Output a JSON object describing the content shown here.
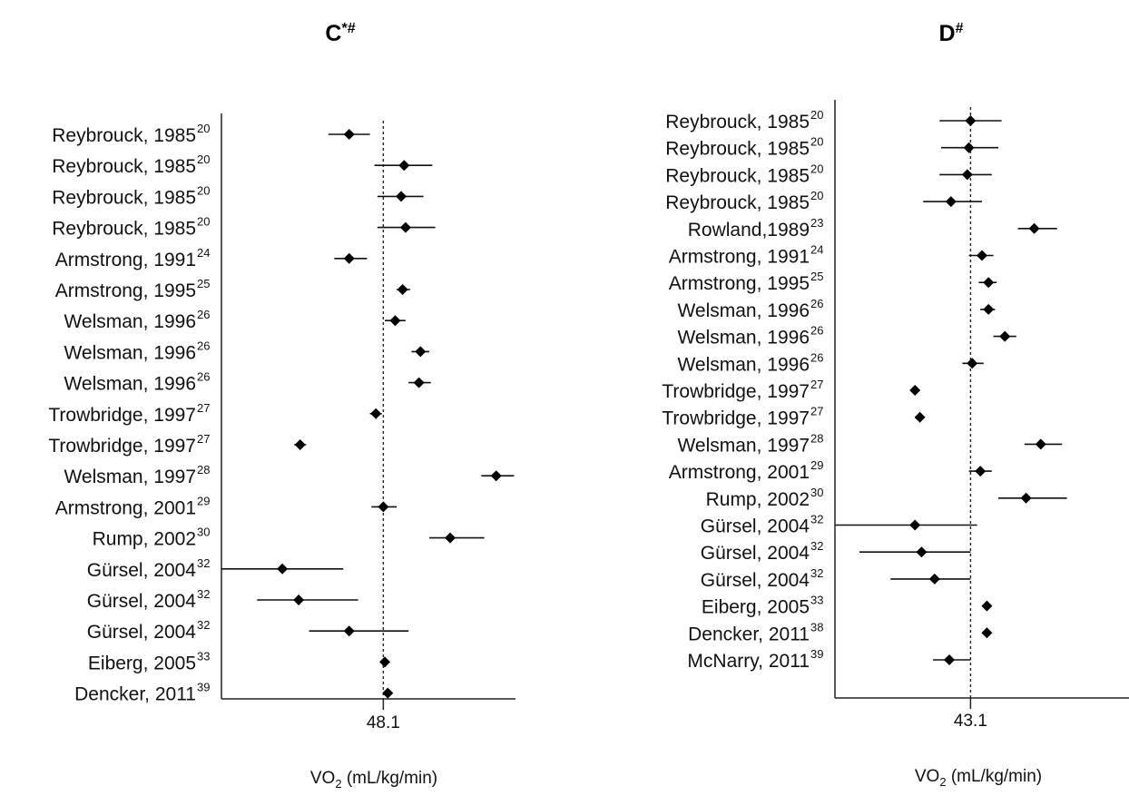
{
  "chart_data": [
    {
      "type": "forest",
      "panel_title": "C*#",
      "title_main": "C",
      "title_sup": "*#",
      "pooled_value": 48.1,
      "pooled_label": "48.1",
      "xlabel": "VO",
      "xlabel_sub": "2",
      "xlabel_rest": " (mL/kg/min)",
      "xlim": [
        37.2,
        57.0
      ],
      "studies": [
        {
          "label": "Reybrouck, 1985",
          "ref": "20",
          "value": 45.8,
          "ci": [
            44.4,
            47.2
          ]
        },
        {
          "label": "Reybrouck, 1985",
          "ref": "20",
          "value": 49.5,
          "ci": [
            47.5,
            51.4
          ]
        },
        {
          "label": "Reybrouck, 1985",
          "ref": "20",
          "value": 49.3,
          "ci": [
            47.7,
            50.8
          ]
        },
        {
          "label": "Reybrouck, 1985",
          "ref": "20",
          "value": 49.6,
          "ci": [
            47.7,
            51.6
          ]
        },
        {
          "label": "Armstrong, 1991",
          "ref": "24",
          "value": 45.8,
          "ci": [
            44.8,
            47.0
          ]
        },
        {
          "label": "Armstrong, 1995",
          "ref": "25",
          "value": 49.4,
          "ci": [
            49.0,
            49.9
          ]
        },
        {
          "label": "Welsman, 1996",
          "ref": "26",
          "value": 48.9,
          "ci": [
            48.2,
            49.6
          ]
        },
        {
          "label": "Welsman, 1996",
          "ref": "26",
          "value": 50.6,
          "ci": [
            50.0,
            51.2
          ]
        },
        {
          "label": "Welsman, 1996",
          "ref": "26",
          "value": 50.5,
          "ci": [
            49.8,
            51.3
          ]
        },
        {
          "label": "Trowbridge, 1997",
          "ref": "27",
          "value": 47.6,
          "ci": [
            47.2,
            48.0
          ]
        },
        {
          "label": "Trowbridge, 1997",
          "ref": "27",
          "value": 42.5,
          "ci": [
            42.1,
            42.9
          ]
        },
        {
          "label": "Welsman, 1997",
          "ref": "28",
          "value": 55.7,
          "ci": [
            54.7,
            56.9
          ]
        },
        {
          "label": "Armstrong, 2001",
          "ref": "29",
          "value": 48.1,
          "ci": [
            47.3,
            49.0
          ]
        },
        {
          "label": "Rump, 2002",
          "ref": "30",
          "value": 52.6,
          "ci": [
            51.2,
            54.9
          ]
        },
        {
          "label": "Gürsel, 2004",
          "ref": "32",
          "value": 41.3,
          "ci": [
            37.2,
            45.4
          ]
        },
        {
          "label": "Gürsel, 2004",
          "ref": "32",
          "value": 42.4,
          "ci": [
            39.6,
            46.4
          ]
        },
        {
          "label": "Gürsel, 2004",
          "ref": "32",
          "value": 45.8,
          "ci": [
            43.1,
            49.8
          ]
        },
        {
          "label": "Eiberg, 2005",
          "ref": "33",
          "value": 48.2,
          "ci": [
            48.0,
            48.4
          ]
        },
        {
          "label": "Dencker, 2011",
          "ref": "39",
          "value": 48.4,
          "ci": [
            48.2,
            48.6
          ]
        }
      ]
    },
    {
      "type": "forest",
      "panel_title": "D#",
      "title_main": "D",
      "title_sup": "#",
      "pooled_value": 43.1,
      "pooled_label": "43.1",
      "xlabel": "VO",
      "xlabel_sub": "2",
      "xlabel_rest": " (mL/kg/min)",
      "xlim": [
        34.8,
        52.8
      ],
      "studies": [
        {
          "label": "Reybrouck, 1985",
          "ref": "20",
          "value": 43.1,
          "ci": [
            41.2,
            45.0
          ]
        },
        {
          "label": "Reybrouck, 1985",
          "ref": "20",
          "value": 43.0,
          "ci": [
            41.3,
            44.8
          ]
        },
        {
          "label": "Reybrouck, 1985",
          "ref": "20",
          "value": 42.9,
          "ci": [
            41.2,
            44.4
          ]
        },
        {
          "label": "Reybrouck, 1985",
          "ref": "20",
          "value": 41.9,
          "ci": [
            40.2,
            43.8
          ]
        },
        {
          "label": "Rowland,1989",
          "ref": "23",
          "value": 47.0,
          "ci": [
            46.0,
            48.4
          ]
        },
        {
          "label": "Armstrong, 1991",
          "ref": "24",
          "value": 43.8,
          "ci": [
            43.0,
            44.5
          ]
        },
        {
          "label": "Armstrong, 1995",
          "ref": "25",
          "value": 44.2,
          "ci": [
            43.6,
            44.7
          ]
        },
        {
          "label": "Welsman, 1996",
          "ref": "26",
          "value": 44.2,
          "ci": [
            43.7,
            44.6
          ]
        },
        {
          "label": "Welsman, 1996",
          "ref": "26",
          "value": 45.2,
          "ci": [
            44.5,
            45.9
          ]
        },
        {
          "label": "Welsman, 1996",
          "ref": "26",
          "value": 43.2,
          "ci": [
            42.6,
            43.9
          ]
        },
        {
          "label": "Trowbridge, 1997",
          "ref": "27",
          "value": 39.7,
          "ci": [
            39.5,
            39.9
          ]
        },
        {
          "label": "Trowbridge, 1997",
          "ref": "27",
          "value": 40.0,
          "ci": [
            39.8,
            40.2
          ]
        },
        {
          "label": "Welsman, 1997",
          "ref": "28",
          "value": 47.4,
          "ci": [
            46.4,
            48.7
          ]
        },
        {
          "label": "Armstrong, 2001",
          "ref": "29",
          "value": 43.7,
          "ci": [
            43.0,
            44.4
          ]
        },
        {
          "label": "Rump, 2002",
          "ref": "30",
          "value": 46.5,
          "ci": [
            44.8,
            49.0
          ]
        },
        {
          "label": "Gürsel, 2004",
          "ref": "32",
          "value": 39.7,
          "ci": [
            34.8,
            43.5
          ]
        },
        {
          "label": "Gürsel, 2004",
          "ref": "32",
          "value": 40.1,
          "ci": [
            36.3,
            43.1
          ]
        },
        {
          "label": "Gürsel, 2004",
          "ref": "32",
          "value": 40.9,
          "ci": [
            38.2,
            43.1
          ]
        },
        {
          "label": "Eiberg, 2005",
          "ref": "33",
          "value": 44.1,
          "ci": [
            43.9,
            44.3
          ]
        },
        {
          "label": "Dencker, 2011",
          "ref": "38",
          "value": 44.1,
          "ci": [
            43.9,
            44.3
          ]
        },
        {
          "label": "McNarry, 2011",
          "ref": "39",
          "value": 41.8,
          "ci": [
            40.8,
            43.1
          ]
        }
      ]
    }
  ]
}
